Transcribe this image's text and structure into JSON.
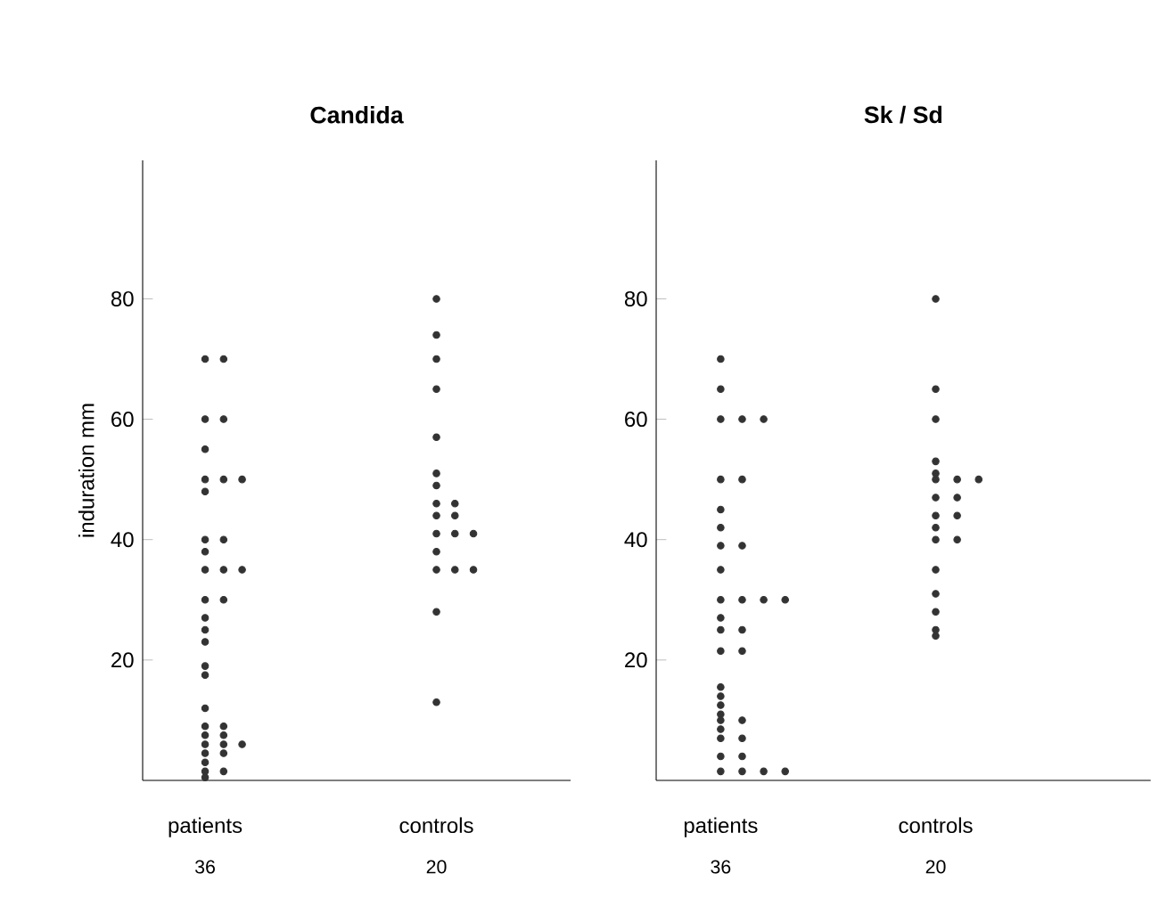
{
  "chart_data": [
    {
      "type": "scatter",
      "title": "Candida",
      "ylabel": "induration mm",
      "categories": [
        "patients",
        "controls"
      ],
      "marker": "circle",
      "ylim": [
        0,
        103
      ],
      "yticks": [
        20,
        40,
        60,
        80
      ],
      "annotations": [
        "36",
        "20"
      ],
      "series": [
        {
          "color": "#333333",
          "x": [
            "patients",
            "patients",
            "patients",
            "patients",
            "patients",
            "patients",
            "patients",
            "patients",
            "patients",
            "patients",
            "patients",
            "patients",
            "patients",
            "patients",
            "patients",
            "patients",
            "patients",
            "patients",
            "patients",
            "patients",
            "patients",
            "patients",
            "patients",
            "patients",
            "patients",
            "patients",
            "patients",
            "patients",
            "patients",
            "patients",
            "patients",
            "patients",
            "patients",
            "patients",
            "patients",
            "patients"
          ],
          "values": [
            70,
            70,
            60,
            60,
            55,
            50,
            50,
            50,
            48,
            40,
            40,
            38,
            35,
            35,
            35,
            30,
            30,
            27,
            25,
            23,
            19,
            17.5,
            12,
            9,
            9,
            7.5,
            7.5,
            6,
            6,
            6,
            4.5,
            4.5,
            3,
            1.5,
            1.5,
            0.5
          ]
        },
        {
          "color": "#333333",
          "x": [
            "controls",
            "controls",
            "controls",
            "controls",
            "controls",
            "controls",
            "controls",
            "controls",
            "controls",
            "controls",
            "controls",
            "controls",
            "controls",
            "controls",
            "controls",
            "controls",
            "controls",
            "controls",
            "controls",
            "controls"
          ],
          "values": [
            80,
            74,
            70,
            65,
            57,
            51,
            49,
            46,
            46,
            44,
            44,
            41,
            41,
            41,
            38,
            35,
            35,
            35,
            28,
            13
          ]
        }
      ]
    },
    {
      "type": "scatter",
      "title": "Sk / Sd",
      "categories": [
        "patients",
        "controls"
      ],
      "marker": "circle",
      "ylim": [
        0,
        103
      ],
      "yticks": [
        20,
        40,
        60,
        80
      ],
      "annotations": [
        "36",
        "20"
      ],
      "series": [
        {
          "color": "#333333",
          "x": [
            "patients",
            "patients",
            "patients",
            "patients",
            "patients",
            "patients",
            "patients",
            "patients",
            "patients",
            "patients",
            "patients",
            "patients",
            "patients",
            "patients",
            "patients",
            "patients",
            "patients",
            "patients",
            "patients",
            "patients",
            "patients",
            "patients",
            "patients",
            "patients",
            "patients",
            "patients",
            "patients",
            "patients",
            "patients",
            "patients",
            "patients",
            "patients",
            "patients",
            "patients",
            "patients",
            "patients"
          ],
          "values": [
            70,
            65,
            60,
            60,
            60,
            50,
            50,
            45,
            42,
            39,
            39,
            35,
            30,
            30,
            30,
            30,
            27,
            25,
            25,
            21.5,
            21.5,
            15.5,
            14,
            12.5,
            11,
            10,
            10,
            8.5,
            7,
            7,
            4,
            4,
            1.5,
            1.5,
            1.5,
            1.5
          ]
        },
        {
          "color": "#333333",
          "x": [
            "controls",
            "controls",
            "controls",
            "controls",
            "controls",
            "controls",
            "controls",
            "controls",
            "controls",
            "controls",
            "controls",
            "controls",
            "controls",
            "controls",
            "controls",
            "controls",
            "controls",
            "controls",
            "controls",
            "controls"
          ],
          "values": [
            80,
            65,
            60,
            53,
            51,
            50,
            50,
            50,
            47,
            47,
            44,
            44,
            42,
            40,
            40,
            35,
            31,
            28,
            25,
            24
          ]
        }
      ]
    }
  ]
}
